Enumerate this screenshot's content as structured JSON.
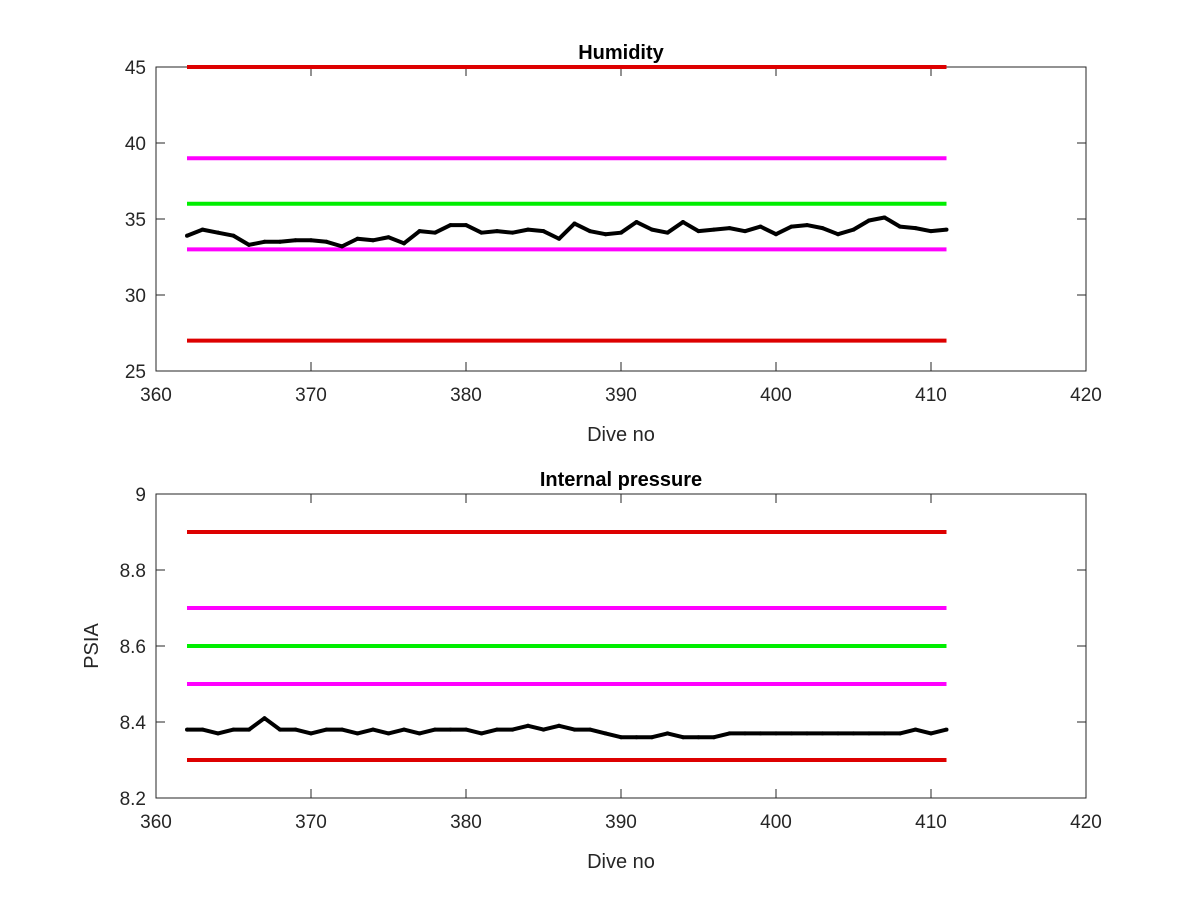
{
  "chart_data": [
    {
      "type": "line",
      "title": "Humidity",
      "xlabel": "Dive no",
      "ylabel": "",
      "xlim": [
        360,
        420
      ],
      "ylim": [
        25,
        45
      ],
      "xticks": [
        360,
        370,
        380,
        390,
        400,
        410,
        420
      ],
      "yticks": [
        25,
        30,
        35,
        40,
        45
      ],
      "grid": false,
      "threshold_lines": [
        {
          "y": 45,
          "x_range": [
            362,
            411
          ],
          "color": "#dd0000"
        },
        {
          "y": 39,
          "x_range": [
            362,
            411
          ],
          "color": "#ff00ff"
        },
        {
          "y": 36,
          "x_range": [
            362,
            411
          ],
          "color": "#00ee00"
        },
        {
          "y": 33,
          "x_range": [
            362,
            411
          ],
          "color": "#ff00ff"
        },
        {
          "y": 27,
          "x_range": [
            362,
            411
          ],
          "color": "#dd0000"
        }
      ],
      "series": [
        {
          "color": "#000000",
          "x": [
            362,
            363,
            364,
            365,
            366,
            367,
            368,
            369,
            370,
            371,
            372,
            373,
            374,
            375,
            376,
            377,
            378,
            379,
            380,
            381,
            382,
            383,
            384,
            385,
            386,
            387,
            388,
            389,
            390,
            391,
            392,
            393,
            394,
            395,
            396,
            397,
            398,
            399,
            400,
            401,
            402,
            403,
            404,
            405,
            406,
            407,
            408,
            409,
            410,
            411
          ],
          "y": [
            33.9,
            34.3,
            34.1,
            33.9,
            33.3,
            33.5,
            33.5,
            33.6,
            33.6,
            33.5,
            33.2,
            33.7,
            33.6,
            33.8,
            33.4,
            34.2,
            34.1,
            34.6,
            34.6,
            34.1,
            34.2,
            34.1,
            34.3,
            34.2,
            33.7,
            34.7,
            34.2,
            34.0,
            34.1,
            34.8,
            34.3,
            34.1,
            34.8,
            34.2,
            34.3,
            34.4,
            34.2,
            34.5,
            34.0,
            34.5,
            34.6,
            34.4,
            34.0,
            34.3,
            34.9,
            35.1,
            34.5,
            34.4,
            34.2,
            34.3
          ]
        }
      ]
    },
    {
      "type": "line",
      "title": "Internal pressure",
      "xlabel": "Dive no",
      "ylabel": "PSIA",
      "xlim": [
        360,
        420
      ],
      "ylim": [
        8.2,
        9
      ],
      "xticks": [
        360,
        370,
        380,
        390,
        400,
        410,
        420
      ],
      "yticks": [
        "8.2",
        "8.4",
        "8.6",
        "8.8",
        "9"
      ],
      "grid": false,
      "threshold_lines": [
        {
          "y": 8.9,
          "x_range": [
            362,
            411
          ],
          "color": "#dd0000"
        },
        {
          "y": 8.7,
          "x_range": [
            362,
            411
          ],
          "color": "#ff00ff"
        },
        {
          "y": 8.6,
          "x_range": [
            362,
            411
          ],
          "color": "#00ee00"
        },
        {
          "y": 8.5,
          "x_range": [
            362,
            411
          ],
          "color": "#ff00ff"
        },
        {
          "y": 8.3,
          "x_range": [
            362,
            411
          ],
          "color": "#dd0000"
        }
      ],
      "series": [
        {
          "color": "#000000",
          "x": [
            362,
            363,
            364,
            365,
            366,
            367,
            368,
            369,
            370,
            371,
            372,
            373,
            374,
            375,
            376,
            377,
            378,
            379,
            380,
            381,
            382,
            383,
            384,
            385,
            386,
            387,
            388,
            389,
            390,
            391,
            392,
            393,
            394,
            395,
            396,
            397,
            398,
            399,
            400,
            401,
            402,
            403,
            404,
            405,
            406,
            407,
            408,
            409,
            410,
            411
          ],
          "y": [
            8.38,
            8.38,
            8.37,
            8.38,
            8.38,
            8.41,
            8.38,
            8.38,
            8.37,
            8.38,
            8.38,
            8.37,
            8.38,
            8.37,
            8.38,
            8.37,
            8.38,
            8.38,
            8.38,
            8.37,
            8.38,
            8.38,
            8.39,
            8.38,
            8.39,
            8.38,
            8.38,
            8.37,
            8.36,
            8.36,
            8.36,
            8.37,
            8.36,
            8.36,
            8.36,
            8.37,
            8.37,
            8.37,
            8.37,
            8.37,
            8.37,
            8.37,
            8.37,
            8.37,
            8.37,
            8.37,
            8.37,
            8.38,
            8.37,
            8.38
          ]
        }
      ]
    }
  ]
}
